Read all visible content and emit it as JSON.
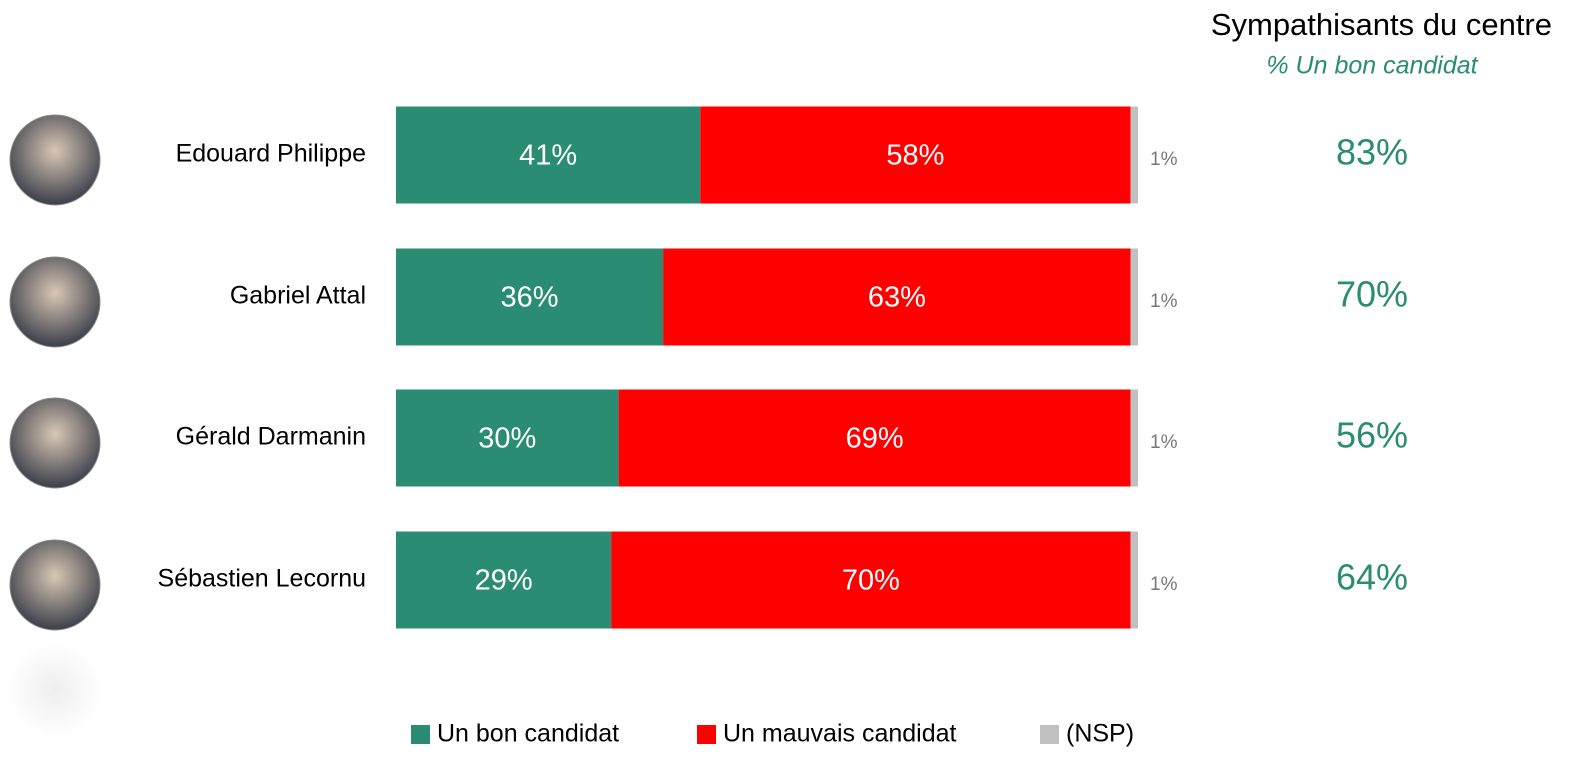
{
  "chart_data": {
    "type": "stacked_bar_horizontal",
    "categories": [
      "Edouard Philippe",
      "Gabriel Attal",
      "Gérald Darmanin",
      "Sébastien Lecornu"
    ],
    "series": [
      {
        "name": "Un bon candidat",
        "color": "#2a8c73",
        "values": [
          41,
          36,
          30,
          29
        ],
        "value_labels": [
          "41%",
          "36%",
          "30%",
          "29%"
        ]
      },
      {
        "name": "Un mauvais candidat",
        "color": "#ff0000",
        "values": [
          58,
          63,
          69,
          70
        ],
        "value_labels": [
          "58%",
          "63%",
          "69%",
          "70%"
        ]
      },
      {
        "name": "(NSP)",
        "color": "#c0c0c0",
        "values": [
          1,
          1,
          1,
          1
        ],
        "value_labels": [
          "1%",
          "1%",
          "1%",
          "1%"
        ]
      }
    ],
    "side_panel": {
      "title": "Sympathisants du centre",
      "subtitle": "% Un bon candidat",
      "color": "#2a8c73",
      "values": [
        83,
        70,
        56,
        64
      ],
      "value_labels": [
        "83%",
        "70%",
        "56%",
        "64%"
      ]
    }
  }
}
